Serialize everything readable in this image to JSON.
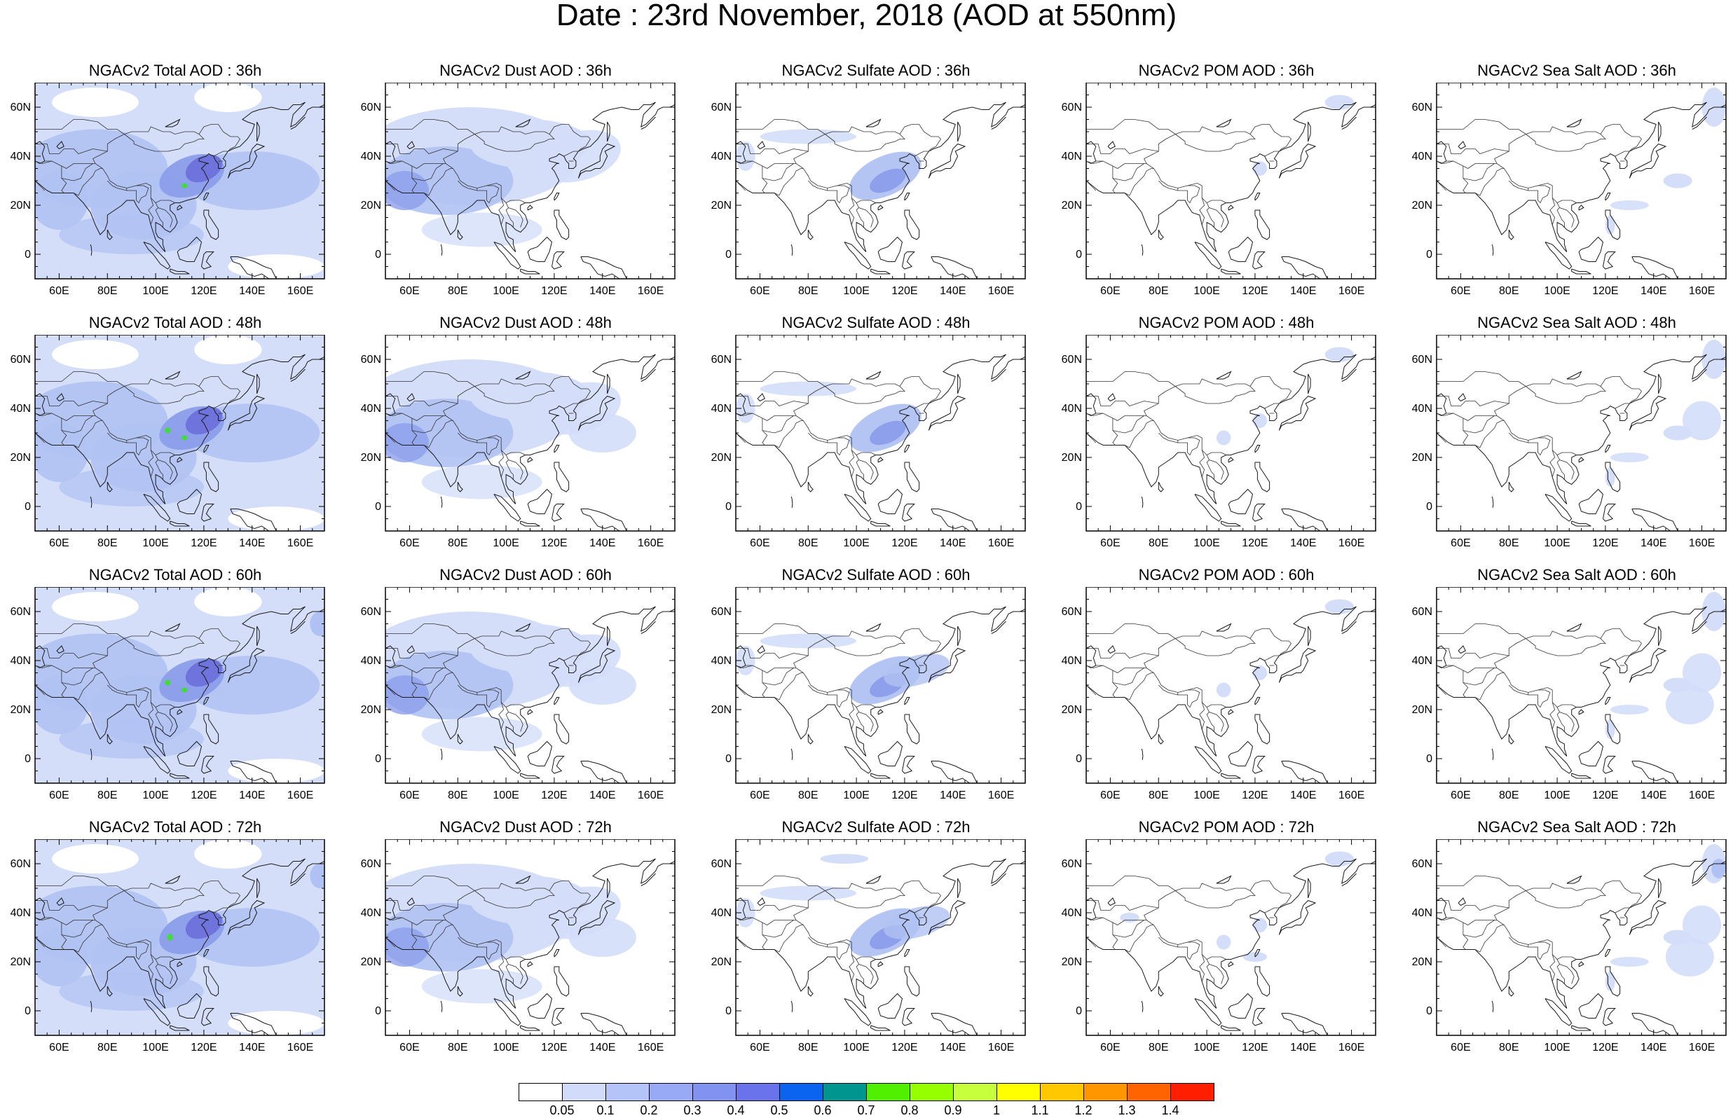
{
  "title": "Date : 23rd November, 2018 (AOD at 550nm)",
  "panels": [
    [
      "NGACv2 Total AOD : 36h",
      "NGACv2 Dust AOD : 36h",
      "NGACv2 Sulfate AOD : 36h",
      "NGACv2 POM AOD : 36h",
      "NGACv2 Sea Salt AOD : 36h"
    ],
    [
      "NGACv2 Total AOD : 48h",
      "NGACv2 Dust AOD : 48h",
      "NGACv2 Sulfate AOD : 48h",
      "NGACv2 POM AOD : 48h",
      "NGACv2 Sea Salt AOD : 48h"
    ],
    [
      "NGACv2 Total AOD : 60h",
      "NGACv2 Dust AOD : 60h",
      "NGACv2 Sulfate AOD : 60h",
      "NGACv2 POM AOD : 60h",
      "NGACv2 Sea Salt AOD : 60h"
    ],
    [
      "NGACv2 Total AOD : 72h",
      "NGACv2 Dust AOD : 72h",
      "NGACv2 Sulfate AOD : 72h",
      "NGACv2 POM AOD : 72h",
      "NGACv2 Sea Salt  AOD : 72h"
    ]
  ],
  "axes": {
    "lat_labels": [
      "60N",
      "40N",
      "20N",
      "0"
    ],
    "lon_labels": [
      "60E",
      "80E",
      "100E",
      "120E",
      "140E",
      "160E"
    ]
  },
  "colorbar": {
    "labels": [
      "0.05",
      "0.1",
      "0.2",
      "0.3",
      "0.4",
      "0.5",
      "0.6",
      "0.7",
      "0.8",
      "0.9",
      "1",
      "1.1",
      "1.2",
      "1.3",
      "1.4"
    ],
    "colors": [
      "#ffffff",
      "#d2dcfa",
      "#b4c3f8",
      "#98aaf5",
      "#8192f0",
      "#6a72ec",
      "#0a64f0",
      "#009690",
      "#50f000",
      "#96ff00",
      "#c8ff3c",
      "#ffff00",
      "#ffc800",
      "#ff9600",
      "#ff6400",
      "#ff1e00"
    ]
  },
  "palette": {
    "light": "#d4def9",
    "mid": "#b0c2f3",
    "dark": "#8c9deb",
    "deep": "#6a6fd9",
    "hot": "#3fdc3a"
  }
}
